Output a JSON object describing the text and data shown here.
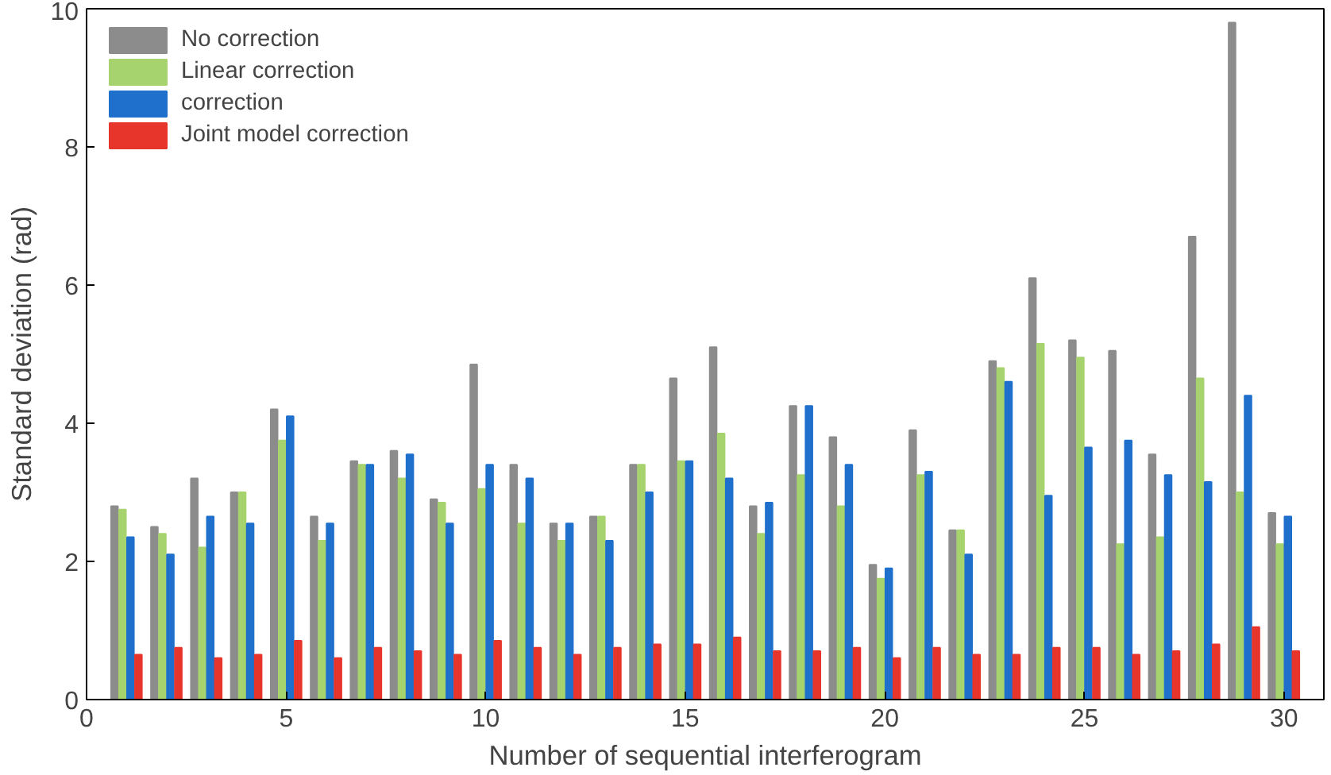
{
  "chart_data": {
    "type": "bar",
    "xlabel": "Number of sequential interferogram",
    "ylabel": "Standard deviation (rad)",
    "x": [
      1,
      2,
      3,
      4,
      5,
      6,
      7,
      8,
      9,
      10,
      11,
      12,
      13,
      14,
      15,
      16,
      17,
      18,
      19,
      20,
      21,
      22,
      23,
      24,
      25,
      26,
      27,
      28,
      29,
      30
    ],
    "series": [
      {
        "name": "No correction",
        "color": "#8c8c8c",
        "values": [
          2.8,
          2.5,
          3.2,
          3.0,
          4.2,
          2.65,
          3.45,
          3.6,
          2.9,
          4.85,
          3.4,
          2.55,
          2.65,
          3.4,
          4.65,
          5.1,
          2.8,
          4.25,
          3.8,
          1.95,
          3.9,
          2.45,
          4.9,
          6.1,
          5.2,
          5.05,
          3.55,
          6.7,
          9.8,
          2.7
        ]
      },
      {
        "name": "Linear correction",
        "color": "#a6d36e",
        "values": [
          2.75,
          2.4,
          2.2,
          3.0,
          3.75,
          2.3,
          3.4,
          3.2,
          2.85,
          3.05,
          2.55,
          2.3,
          2.65,
          3.4,
          3.45,
          3.85,
          2.4,
          3.25,
          2.8,
          1.75,
          3.25,
          2.45,
          4.8,
          5.15,
          4.95,
          2.25,
          2.35,
          4.65,
          3.0,
          2.25
        ]
      },
      {
        "name": "correction",
        "color": "#1f6fcc",
        "values": [
          2.35,
          2.1,
          2.65,
          2.55,
          4.1,
          2.55,
          3.4,
          3.55,
          2.55,
          3.4,
          3.2,
          2.55,
          2.3,
          3.0,
          3.45,
          3.2,
          2.85,
          4.25,
          3.4,
          1.9,
          3.3,
          2.1,
          4.6,
          2.95,
          3.65,
          3.75,
          3.25,
          3.15,
          4.4,
          2.65
        ]
      },
      {
        "name": "Joint model correction",
        "color": "#e8352c",
        "values": [
          0.65,
          0.75,
          0.6,
          0.65,
          0.85,
          0.6,
          0.75,
          0.7,
          0.65,
          0.85,
          0.75,
          0.65,
          0.75,
          0.8,
          0.8,
          0.9,
          0.7,
          0.7,
          0.75,
          0.6,
          0.75,
          0.65,
          0.65,
          0.75,
          0.75,
          0.65,
          0.7,
          0.8,
          1.05,
          0.7
        ]
      }
    ],
    "xlim": [
      0,
      31
    ],
    "xticks": [
      0,
      5,
      10,
      15,
      20,
      25,
      30
    ],
    "ylim": [
      0,
      10
    ],
    "yticks": [
      0,
      2,
      4,
      6,
      8,
      10
    ],
    "grid": false,
    "legend": "top left"
  }
}
